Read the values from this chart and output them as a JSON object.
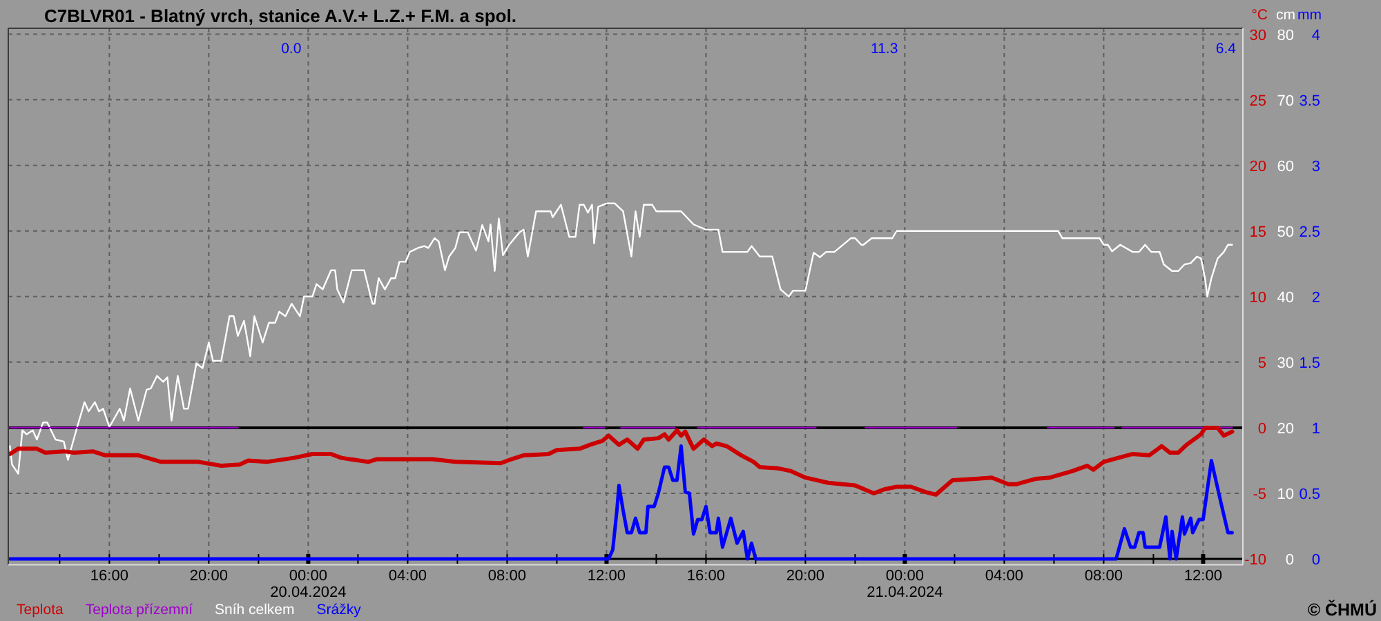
{
  "chart_data": {
    "type": "line",
    "title": "C7BLVR01 - Blatný vrch, stanice A.V.+ L.Z.+ F.M. a spol.",
    "ylabel": "°C",
    "y2label": "cm",
    "y3label": "mm",
    "xlim": [
      "2024-04-19T11:56",
      "2024-04-21T13:36"
    ],
    "xticks": [
      {
        "value": "2024-04-19T14:00",
        "label": null
      },
      {
        "value": "2024-04-19T16:00",
        "label": "16:00"
      },
      {
        "value": "2024-04-19T18:00",
        "label": null
      },
      {
        "value": "2024-04-19T20:00",
        "label": "20:00"
      },
      {
        "value": "2024-04-19T22:00",
        "label": null
      },
      {
        "value": "2024-04-20T00:00",
        "label": "00:00\n20.04.2024"
      },
      {
        "value": "2024-04-20T02:00",
        "label": null
      },
      {
        "value": "2024-04-20T04:00",
        "label": "04:00"
      },
      {
        "value": "2024-04-20T06:00",
        "label": null
      },
      {
        "value": "2024-04-20T08:00",
        "label": "08:00"
      },
      {
        "value": "2024-04-20T10:00",
        "label": null
      },
      {
        "value": "2024-04-20T12:00",
        "label": "12:00"
      },
      {
        "value": "2024-04-20T14:00",
        "label": null
      },
      {
        "value": "2024-04-20T16:00",
        "label": "16:00"
      },
      {
        "value": "2024-04-20T18:00",
        "label": null
      },
      {
        "value": "2024-04-20T20:00",
        "label": "20:00"
      },
      {
        "value": "2024-04-20T22:00",
        "label": null
      },
      {
        "value": "2024-04-21T00:00",
        "label": "00:00\n21.04.2024"
      },
      {
        "value": "2024-04-21T02:00",
        "label": null
      },
      {
        "value": "2024-04-21T04:00",
        "label": "04:00"
      },
      {
        "value": "2024-04-21T06:00",
        "label": null
      },
      {
        "value": "2024-04-21T08:00",
        "label": "08:00"
      },
      {
        "value": "2024-04-21T10:00",
        "label": null
      },
      {
        "value": "2024-04-21T12:00",
        "label": "12:00"
      }
    ],
    "ylim": [
      -10.45,
      30.45
    ],
    "yticks": [
      -10,
      -5,
      0,
      5,
      10,
      15,
      20,
      25,
      30
    ],
    "y2lim": [
      -0.9,
      80.9
    ],
    "y2ticks": [
      0,
      10,
      20,
      30,
      40,
      50,
      60,
      70,
      80
    ],
    "y3lim": [
      -0.045,
      4.045
    ],
    "y3ticks": [
      0,
      0.5,
      1,
      1.5,
      2,
      2.5,
      3,
      3.5,
      4
    ],
    "grid": true,
    "legend": "bottom left",
    "ref_lines": [
      {
        "axis": "y",
        "value": 0,
        "color": "#000000"
      }
    ],
    "annotations": [
      "0.0",
      "11.3",
      "6.4",
      "© ČHMÚ"
    ],
    "series": [
      {
        "name": "Teplota",
        "color": "#cc0000",
        "x": [
          "2024-04-19T12:00",
          "2024-04-19T12:20",
          "2024-04-19T13:05",
          "2024-04-19T13:25",
          "2024-04-19T14:10",
          "2024-04-19T14:35",
          "2024-04-19T15:20",
          "2024-04-19T15:50",
          "2024-04-19T17:10",
          "2024-04-19T18:05",
          "2024-04-19T19:35",
          "2024-04-19T20:30",
          "2024-04-19T21:15",
          "2024-04-19T21:35",
          "2024-04-19T22:20",
          "2024-04-19T23:25",
          "2024-04-20T00:10",
          "2024-04-20T00:55",
          "2024-04-20T01:20",
          "2024-04-20T02:25",
          "2024-04-20T02:45",
          "2024-04-20T03:55",
          "2024-04-20T05:00",
          "2024-04-20T05:55",
          "2024-04-20T07:45",
          "2024-04-20T08:10",
          "2024-04-20T08:40",
          "2024-04-20T09:40",
          "2024-04-20T10:00",
          "2024-04-20T10:55",
          "2024-04-20T11:20",
          "2024-04-20T11:50",
          "2024-04-20T12:05",
          "2024-04-20T12:30",
          "2024-04-20T12:50",
          "2024-04-20T13:15",
          "2024-04-20T13:30",
          "2024-04-20T14:05",
          "2024-04-20T14:20",
          "2024-04-20T14:30",
          "2024-04-20T14:50",
          "2024-04-20T15:00",
          "2024-04-20T15:10",
          "2024-04-20T15:30",
          "2024-04-20T15:55",
          "2024-04-20T16:15",
          "2024-04-20T16:25",
          "2024-04-20T16:50",
          "2024-04-20T17:25",
          "2024-04-20T17:55",
          "2024-04-20T18:10",
          "2024-04-20T18:55",
          "2024-04-20T19:25",
          "2024-04-20T20:00",
          "2024-04-20T20:55",
          "2024-04-20T22:00",
          "2024-04-20T22:45",
          "2024-04-20T23:10",
          "2024-04-20T23:40",
          "2024-04-21T00:15",
          "2024-04-21T00:50",
          "2024-04-21T01:15",
          "2024-04-21T01:55",
          "2024-04-21T02:50",
          "2024-04-21T03:30",
          "2024-04-21T04:10",
          "2024-04-21T04:30",
          "2024-04-21T05:15",
          "2024-04-21T05:50",
          "2024-04-21T06:45",
          "2024-04-21T07:20",
          "2024-04-21T07:35",
          "2024-04-21T08:00",
          "2024-04-21T08:35",
          "2024-04-21T09:10",
          "2024-04-21T09:50",
          "2024-04-21T10:20",
          "2024-04-21T10:40",
          "2024-04-21T11:00",
          "2024-04-21T11:20",
          "2024-04-21T11:55",
          "2024-04-21T12:05",
          "2024-04-21T12:35",
          "2024-04-21T12:50",
          "2024-04-21T13:10"
        ],
        "values": [
          -2.0,
          -1.6,
          -1.6,
          -1.9,
          -1.8,
          -1.9,
          -1.8,
          -2.1,
          -2.1,
          -2.6,
          -2.6,
          -2.9,
          -2.8,
          -2.5,
          -2.6,
          -2.3,
          -2.0,
          -2.0,
          -2.3,
          -2.6,
          -2.4,
          -2.4,
          -2.4,
          -2.6,
          -2.7,
          -2.4,
          -2.1,
          -2.0,
          -1.7,
          -1.6,
          -1.3,
          -1.0,
          -0.6,
          -1.3,
          -0.9,
          -1.6,
          -0.9,
          -0.8,
          -0.5,
          -0.9,
          -0.2,
          -0.6,
          -0.3,
          -1.6,
          -0.9,
          -1.4,
          -1.2,
          -1.4,
          -2.1,
          -2.6,
          -3.0,
          -3.1,
          -3.3,
          -3.8,
          -4.2,
          -4.4,
          -5.0,
          -4.7,
          -4.5,
          -4.5,
          -4.9,
          -5.1,
          -4.0,
          -3.9,
          -3.8,
          -4.3,
          -4.3,
          -3.9,
          -3.8,
          -3.3,
          -2.9,
          -3.2,
          -2.6,
          -2.3,
          -2.0,
          -2.1,
          -1.4,
          -1.9,
          -1.9,
          -1.3,
          -0.5,
          0.0,
          0.0,
          -0.6,
          -0.3
        ]
      },
      {
        "name": "Teplota přízemní",
        "color": "#a000cc",
        "x": [
          "2024-04-19T12:00",
          "2024-04-19T21:10",
          "2024-04-19T21:15",
          "2024-04-20T11:05",
          "2024-04-20T11:55",
          "2024-04-20T12:00",
          "2024-04-20T12:35",
          "2024-04-20T14:45",
          "2024-04-20T14:50",
          "2024-04-20T15:40",
          "2024-04-20T20:25",
          "2024-04-20T20:30",
          "2024-04-20T22:25",
          "2024-04-21T02:05",
          "2024-04-21T02:10",
          "2024-04-21T05:45",
          "2024-04-21T08:25",
          "2024-04-21T08:30",
          "2024-04-21T08:45",
          "2024-04-21T13:10"
        ],
        "values": [
          0,
          0,
          null,
          0,
          0,
          null,
          0,
          0,
          null,
          0,
          0,
          null,
          0,
          0,
          null,
          0,
          0,
          null,
          0,
          0
        ]
      },
      {
        "name": "Sníh celkem",
        "color": "#ffffff",
        "axis": "y2",
        "x": [
          "2024-04-19T12:00",
          "2024-04-19T12:05",
          "2024-04-19T12:20",
          "2024-04-19T12:30",
          "2024-04-19T12:40",
          "2024-04-19T12:55",
          "2024-04-19T13:05",
          "2024-04-19T13:20",
          "2024-04-19T13:30",
          "2024-04-19T13:50",
          "2024-04-19T14:10",
          "2024-04-19T14:20",
          "2024-04-19T14:40",
          "2024-04-19T15:00",
          "2024-04-19T15:10",
          "2024-04-19T15:25",
          "2024-04-19T15:35",
          "2024-04-19T15:45",
          "2024-04-19T16:00",
          "2024-04-19T16:25",
          "2024-04-19T16:35",
          "2024-04-19T16:50",
          "2024-04-19T17:10",
          "2024-04-19T17:30",
          "2024-04-19T17:40",
          "2024-04-19T17:55",
          "2024-04-19T18:10",
          "2024-04-19T18:20",
          "2024-04-19T18:30",
          "2024-04-19T18:45",
          "2024-04-19T19:00",
          "2024-04-19T19:10",
          "2024-04-19T19:30",
          "2024-04-19T19:45",
          "2024-04-19T20:00",
          "2024-04-19T20:10",
          "2024-04-19T20:30",
          "2024-04-19T20:50",
          "2024-04-19T21:00",
          "2024-04-19T21:10",
          "2024-04-19T21:25",
          "2024-04-19T21:40",
          "2024-04-19T21:50",
          "2024-04-19T22:10",
          "2024-04-19T22:25",
          "2024-04-19T22:40",
          "2024-04-19T22:50",
          "2024-04-19T23:05",
          "2024-04-19T23:20",
          "2024-04-19T23:40",
          "2024-04-19T23:50",
          "2024-04-20T00:10",
          "2024-04-20T00:20",
          "2024-04-20T00:35",
          "2024-04-20T00:55",
          "2024-04-20T01:05",
          "2024-04-20T01:10",
          "2024-04-20T01:25",
          "2024-04-20T01:45",
          "2024-04-20T02:15",
          "2024-04-20T02:35",
          "2024-04-20T02:40",
          "2024-04-20T02:50",
          "2024-04-20T03:05",
          "2024-04-20T03:20",
          "2024-04-20T03:30",
          "2024-04-20T03:40",
          "2024-04-20T03:55",
          "2024-04-20T04:05",
          "2024-04-20T04:25",
          "2024-04-20T04:40",
          "2024-04-20T04:50",
          "2024-04-20T05:05",
          "2024-04-20T05:15",
          "2024-04-20T05:30",
          "2024-04-20T05:40",
          "2024-04-20T05:55",
          "2024-04-20T06:05",
          "2024-04-20T06:25",
          "2024-04-20T06:45",
          "2024-04-20T07:00",
          "2024-04-20T07:15",
          "2024-04-20T07:20",
          "2024-04-20T07:30",
          "2024-04-20T07:40",
          "2024-04-20T07:50",
          "2024-04-20T08:05",
          "2024-04-20T08:30",
          "2024-04-20T08:40",
          "2024-04-20T08:50",
          "2024-04-20T09:10",
          "2024-04-20T09:45",
          "2024-04-20T09:50",
          "2024-04-20T10:10",
          "2024-04-20T10:30",
          "2024-04-20T10:45",
          "2024-04-20T10:55",
          "2024-04-20T11:05",
          "2024-04-20T11:15",
          "2024-04-20T11:25",
          "2024-04-20T11:30",
          "2024-04-20T11:40",
          "2024-04-20T12:00",
          "2024-04-20T12:20",
          "2024-04-20T12:40",
          "2024-04-20T13:00",
          "2024-04-20T13:10",
          "2024-04-20T13:15",
          "2024-04-20T13:20",
          "2024-04-20T13:30",
          "2024-04-20T13:50",
          "2024-04-20T14:00",
          "2024-04-20T15:00",
          "2024-04-20T15:30",
          "2024-04-20T16:00",
          "2024-04-20T16:30",
          "2024-04-20T16:40",
          "2024-04-20T17:40",
          "2024-04-20T17:50",
          "2024-04-20T18:10",
          "2024-04-20T18:40",
          "2024-04-20T19:00",
          "2024-04-20T19:20",
          "2024-04-20T19:30",
          "2024-04-20T20:00",
          "2024-04-20T20:20",
          "2024-04-20T20:35",
          "2024-04-20T20:50",
          "2024-04-20T21:10",
          "2024-04-20T21:50",
          "2024-04-20T22:00",
          "2024-04-20T22:15",
          "2024-04-20T22:20",
          "2024-04-20T22:40",
          "2024-04-20T23:30",
          "2024-04-20T23:40",
          "2024-04-21T06:10",
          "2024-04-21T06:20",
          "2024-04-21T07:50",
          "2024-04-21T08:00",
          "2024-04-21T08:10",
          "2024-04-21T08:20",
          "2024-04-21T08:40",
          "2024-04-21T09:10",
          "2024-04-21T09:25",
          "2024-04-21T09:40",
          "2024-04-21T09:55",
          "2024-04-21T10:15",
          "2024-04-21T10:25",
          "2024-04-21T10:45",
          "2024-04-21T11:00",
          "2024-04-21T11:15",
          "2024-04-21T11:30",
          "2024-04-21T11:45",
          "2024-04-21T11:55",
          "2024-04-21T12:05",
          "2024-04-21T12:10",
          "2024-04-21T12:20",
          "2024-04-21T12:35",
          "2024-04-21T12:50",
          "2024-04-21T13:00",
          "2024-04-21T13:10"
        ],
        "values": [
          17.2,
          14.4,
          13.0,
          19.6,
          19.0,
          19.6,
          18.2,
          20.8,
          20.8,
          18.2,
          17.9,
          15.1,
          19.6,
          23.9,
          22.5,
          23.9,
          22.5,
          22.9,
          20.1,
          22.9,
          21.1,
          26.0,
          21.1,
          25.8,
          26.0,
          27.9,
          27.0,
          27.7,
          21.1,
          27.9,
          22.9,
          22.9,
          29.8,
          29.1,
          33.0,
          30.2,
          30.2,
          37.0,
          37.0,
          34.0,
          36.3,
          30.9,
          37.0,
          33.0,
          36.0,
          36.0,
          37.7,
          37.0,
          38.9,
          37.0,
          40.0,
          40.0,
          41.9,
          41.1,
          44.0,
          44.0,
          41.1,
          39.1,
          44.0,
          44.0,
          38.9,
          38.9,
          42.8,
          41.1,
          42.8,
          42.8,
          45.3,
          45.3,
          46.8,
          47.4,
          47.7,
          47.4,
          48.9,
          48.4,
          44.0,
          46.1,
          47.4,
          49.8,
          49.8,
          47.0,
          50.9,
          48.4,
          51.0,
          43.9,
          51.9,
          46.3,
          47.9,
          49.8,
          50.2,
          46.1,
          53.0,
          53.0,
          52.1,
          54.0,
          49.1,
          49.1,
          54.0,
          54.0,
          52.8,
          54.0,
          48.1,
          53.7,
          54.2,
          54.2,
          53.0,
          46.1,
          53.0,
          51.0,
          49.1,
          54.0,
          54.0,
          53.0,
          53.0,
          51.0,
          50.2,
          50.2,
          46.8,
          46.8,
          47.7,
          46.1,
          46.1,
          41.1,
          40.0,
          40.9,
          40.9,
          46.7,
          46.0,
          46.8,
          46.8,
          48.9,
          48.9,
          47.9,
          47.9,
          48.9,
          48.9,
          50.0,
          50.0,
          48.9,
          48.9,
          47.9,
          47.9,
          46.9,
          47.9,
          46.8,
          46.8,
          47.9,
          46.8,
          46.8,
          44.9,
          43.9,
          43.9,
          44.9,
          45.1,
          46.1,
          45.8,
          42.6,
          40.0,
          42.8,
          45.8,
          46.8,
          47.9,
          47.9
        ]
      },
      {
        "name": "Srážky",
        "color": "#0000ff",
        "axis": "y3",
        "x": [
          "2024-04-19T12:00",
          "2024-04-20T12:05",
          "2024-04-20T12:15",
          "2024-04-20T12:25",
          "2024-04-20T12:30",
          "2024-04-20T12:40",
          "2024-04-20T12:50",
          "2024-04-20T13:00",
          "2024-04-20T13:10",
          "2024-04-20T13:20",
          "2024-04-20T13:35",
          "2024-04-20T13:40",
          "2024-04-20T13:55",
          "2024-04-20T14:05",
          "2024-04-20T14:20",
          "2024-04-20T14:30",
          "2024-04-20T14:40",
          "2024-04-20T14:50",
          "2024-04-20T15:00",
          "2024-04-20T15:10",
          "2024-04-20T15:20",
          "2024-04-20T15:30",
          "2024-04-20T15:40",
          "2024-04-20T15:50",
          "2024-04-20T16:00",
          "2024-04-20T16:10",
          "2024-04-20T16:25",
          "2024-04-20T16:30",
          "2024-04-20T16:40",
          "2024-04-20T17:00",
          "2024-04-20T17:15",
          "2024-04-20T17:30",
          "2024-04-20T17:40",
          "2024-04-20T17:50",
          "2024-04-20T18:00",
          "2024-04-21T08:30",
          "2024-04-21T08:50",
          "2024-04-21T09:05",
          "2024-04-21T09:15",
          "2024-04-21T09:25",
          "2024-04-21T09:35",
          "2024-04-21T09:40",
          "2024-04-21T10:15",
          "2024-04-21T10:30",
          "2024-04-21T10:40",
          "2024-04-21T10:45",
          "2024-04-21T10:55",
          "2024-04-21T11:10",
          "2024-04-21T11:15",
          "2024-04-21T11:30",
          "2024-04-21T11:35",
          "2024-04-21T11:50",
          "2024-04-21T12:00",
          "2024-04-21T12:20",
          "2024-04-21T12:40",
          "2024-04-21T13:00",
          "2024-04-21T13:10"
        ],
        "values": [
          0,
          0,
          0.07,
          0.37,
          0.56,
          0.37,
          0.2,
          0.2,
          0.31,
          0.2,
          0.2,
          0.4,
          0.4,
          0.5,
          0.7,
          0.7,
          0.6,
          0.6,
          0.86,
          0.51,
          0.5,
          0.19,
          0.3,
          0.3,
          0.4,
          0.2,
          0.2,
          0.31,
          0.09,
          0.31,
          0.12,
          0.21,
          0,
          0.12,
          0,
          0,
          0.23,
          0.09,
          0.09,
          0.2,
          0.2,
          0.09,
          0.09,
          0.32,
          0,
          0.21,
          0,
          0.32,
          0.19,
          0.31,
          0.2,
          0.3,
          0.3,
          0.75,
          0.47,
          0.2,
          0.2
        ]
      }
    ]
  }
}
